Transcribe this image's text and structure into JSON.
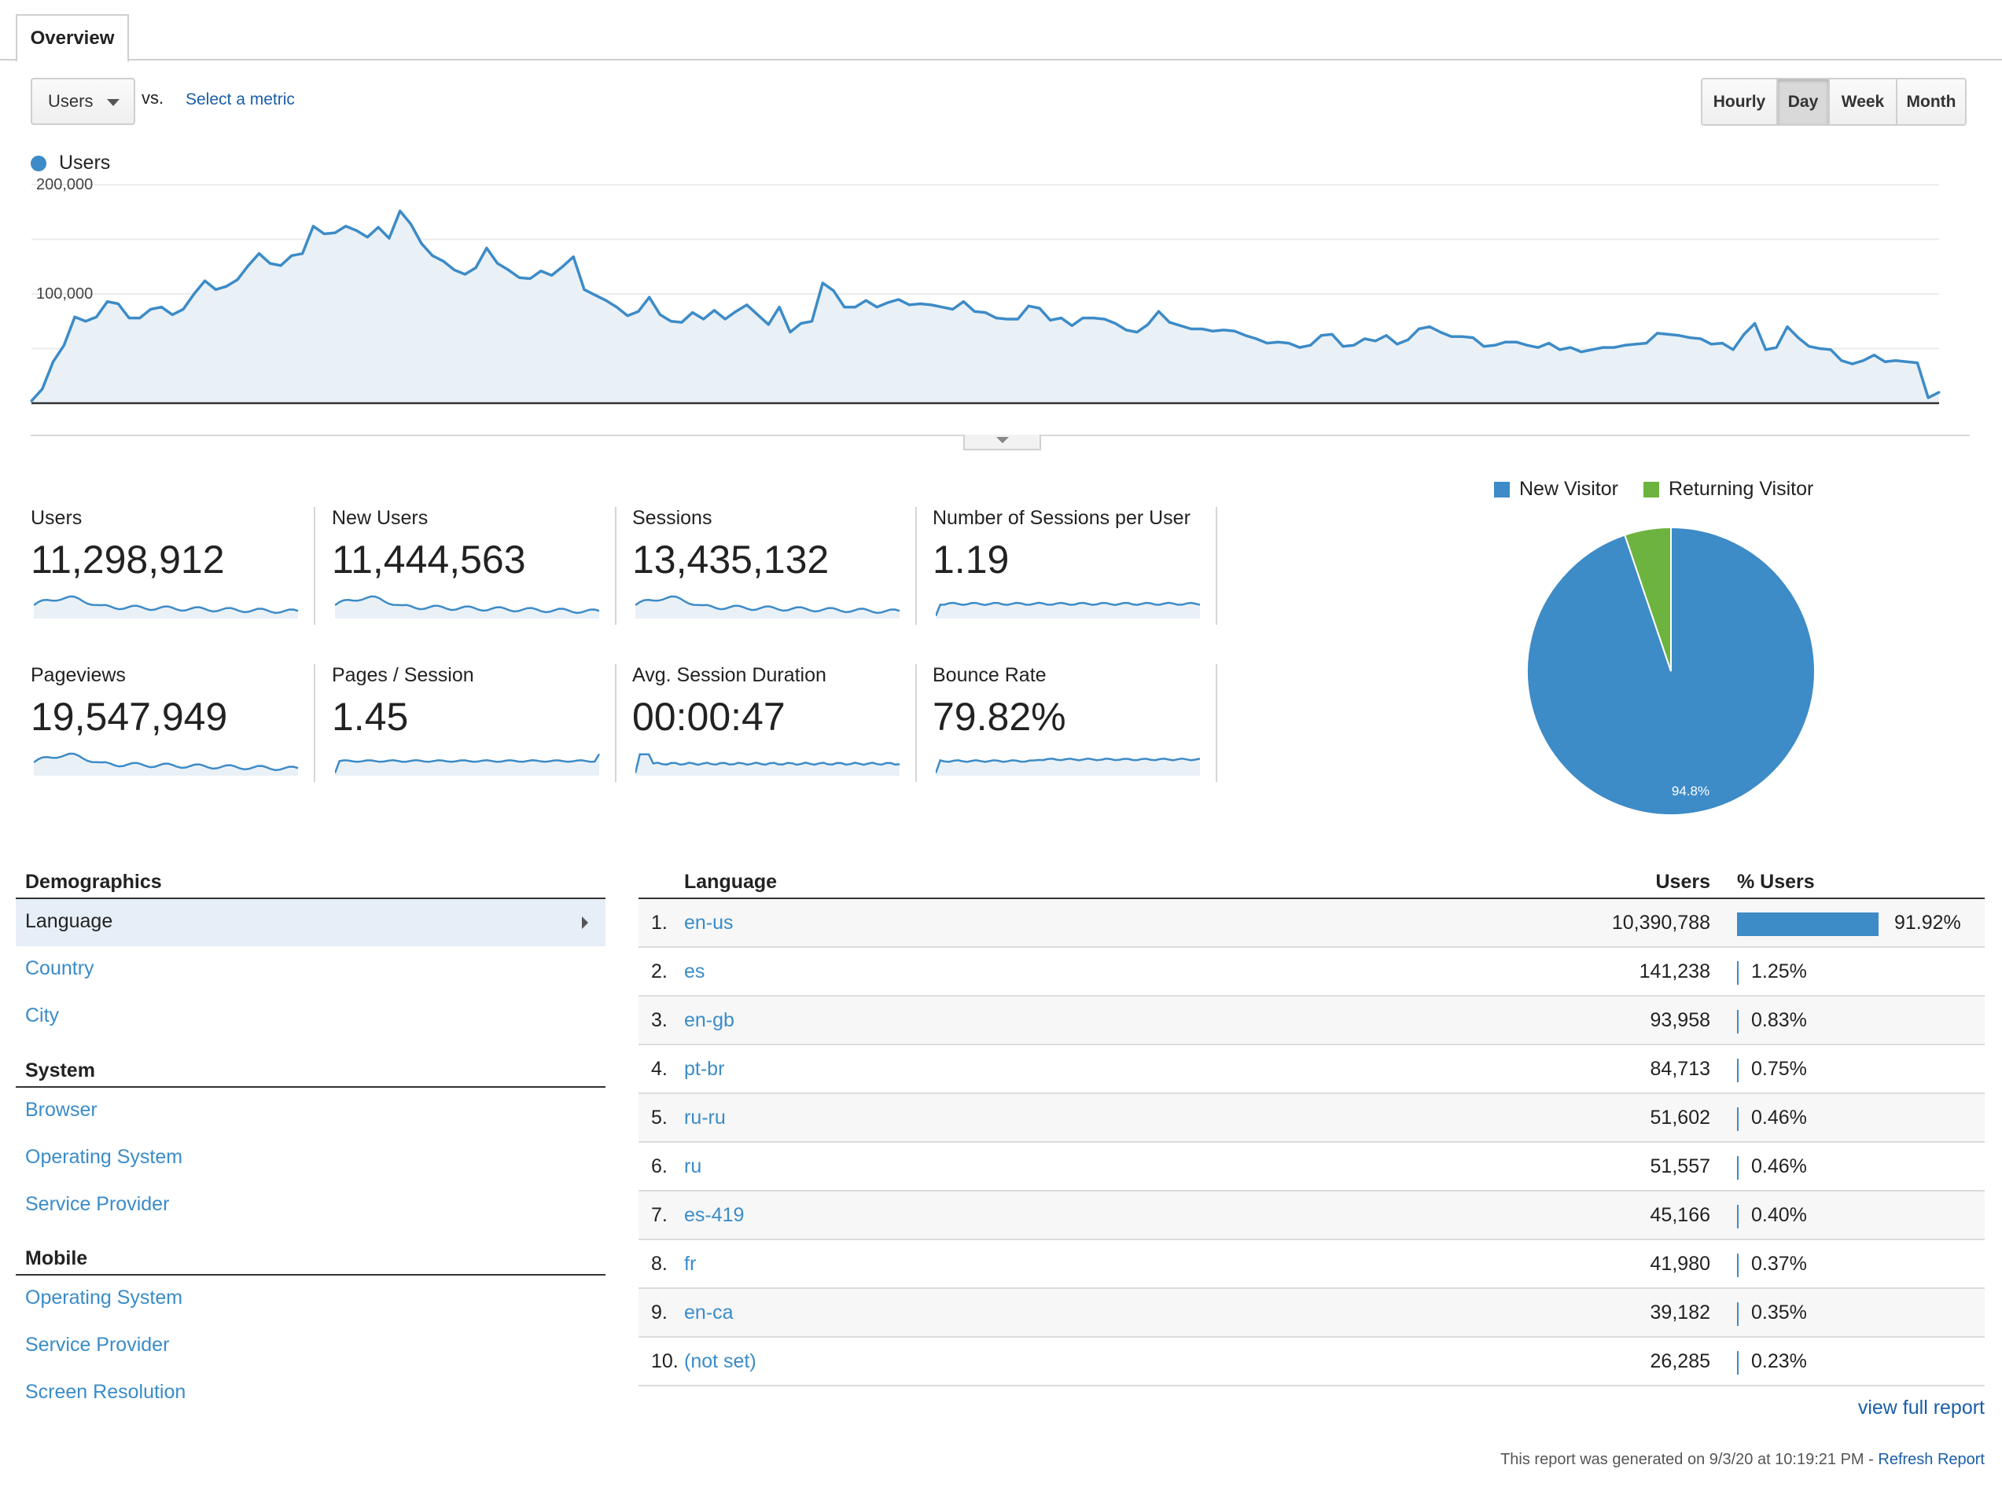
{
  "tab": {
    "label": "Overview"
  },
  "controls": {
    "metric_value": "Users",
    "vs_label": "vs.",
    "select_metric": "Select a metric",
    "granularity": [
      "Hourly",
      "Day",
      "Week",
      "Month"
    ],
    "active_granularity": "Day"
  },
  "chart_data": {
    "type": "area",
    "series": [
      {
        "name": "Users",
        "color": "#3d8bc7",
        "values": [
          2000,
          13000,
          38000,
          53000,
          79000,
          75000,
          79000,
          93000,
          91000,
          78000,
          78000,
          86000,
          88000,
          81000,
          86000,
          100000,
          112000,
          104000,
          107000,
          113000,
          126000,
          137000,
          128000,
          126000,
          135000,
          137000,
          162000,
          155000,
          156000,
          162000,
          158000,
          152000,
          161000,
          151000,
          176000,
          164000,
          146000,
          135000,
          130000,
          122000,
          118000,
          124000,
          142000,
          128000,
          122000,
          115000,
          114000,
          121000,
          117000,
          125000,
          134000,
          104000,
          99000,
          94000,
          88000,
          80000,
          84000,
          97000,
          81000,
          75000,
          74000,
          83000,
          77000,
          85000,
          77000,
          84000,
          90000,
          81000,
          72000,
          88000,
          65000,
          73000,
          75000,
          110000,
          103000,
          88000,
          88000,
          94000,
          88000,
          92000,
          95000,
          90000,
          91000,
          90000,
          88000,
          86000,
          93000,
          84000,
          83000,
          78000,
          77000,
          77000,
          89000,
          87000,
          76000,
          78000,
          71000,
          78000,
          78000,
          77000,
          73000,
          67000,
          65000,
          72000,
          84000,
          74000,
          71000,
          68000,
          68000,
          66000,
          67000,
          66000,
          62000,
          59000,
          55000,
          56000,
          55000,
          51000,
          53000,
          62000,
          63000,
          52000,
          53000,
          59000,
          57000,
          62000,
          54000,
          58000,
          68000,
          70000,
          65000,
          61000,
          61000,
          60000,
          52000,
          53000,
          56000,
          56000,
          53000,
          51000,
          55000,
          49000,
          51000,
          47000,
          49000,
          51000,
          51000,
          53000,
          54000,
          55000,
          64000,
          63000,
          62000,
          60000,
          59000,
          54000,
          55000,
          49000,
          63000,
          73000,
          49000,
          51000,
          70000,
          60000,
          52000,
          50000,
          49000,
          39000,
          36000,
          39000,
          44000,
          38000,
          39000,
          38000,
          37000,
          5000,
          10000
        ]
      }
    ],
    "y_tick_labels": [
      "200,000",
      "100,000"
    ],
    "ylim": [
      0,
      200000
    ],
    "grid": true
  },
  "metrics": [
    {
      "label": "Users",
      "value": "11,298,912"
    },
    {
      "label": "New Users",
      "value": "11,444,563"
    },
    {
      "label": "Sessions",
      "value": "13,435,132"
    },
    {
      "label": "Number of Sessions per User",
      "value": "1.19"
    },
    {
      "label": "Pageviews",
      "value": "19,547,949"
    },
    {
      "label": "Pages / Session",
      "value": "1.45"
    },
    {
      "label": "Avg. Session Duration",
      "value": "00:00:47"
    },
    {
      "label": "Bounce Rate",
      "value": "79.82%"
    }
  ],
  "pie": {
    "legend": [
      {
        "label": "New Visitor",
        "color": "#3d8bc7"
      },
      {
        "label": "Returning Visitor",
        "color": "#6db33f"
      }
    ],
    "values": [
      94.8,
      5.2
    ],
    "label_new": "94.8%"
  },
  "nav": {
    "sections": [
      {
        "title": "Demographics",
        "items": [
          "Language",
          "Country",
          "City"
        ]
      },
      {
        "title": "System",
        "items": [
          "Browser",
          "Operating System",
          "Service Provider"
        ]
      },
      {
        "title": "Mobile",
        "items": [
          "Operating System",
          "Service Provider",
          "Screen Resolution"
        ]
      }
    ],
    "active": "Language"
  },
  "table": {
    "headers": {
      "dimension": "Language",
      "users": "Users",
      "pct": "% Users"
    },
    "rows": [
      {
        "n": "1.",
        "lang": "en-us",
        "users": "10,390,788",
        "pct": "91.92%",
        "share": 91.92
      },
      {
        "n": "2.",
        "lang": "es",
        "users": "141,238",
        "pct": "1.25%",
        "share": 1.25
      },
      {
        "n": "3.",
        "lang": "en-gb",
        "users": "93,958",
        "pct": "0.83%",
        "share": 0.83
      },
      {
        "n": "4.",
        "lang": "pt-br",
        "users": "84,713",
        "pct": "0.75%",
        "share": 0.75
      },
      {
        "n": "5.",
        "lang": "ru-ru",
        "users": "51,602",
        "pct": "0.46%",
        "share": 0.46
      },
      {
        "n": "6.",
        "lang": "ru",
        "users": "51,557",
        "pct": "0.46%",
        "share": 0.46
      },
      {
        "n": "7.",
        "lang": "es-419",
        "users": "45,166",
        "pct": "0.40%",
        "share": 0.4
      },
      {
        "n": "8.",
        "lang": "fr",
        "users": "41,980",
        "pct": "0.37%",
        "share": 0.37
      },
      {
        "n": "9.",
        "lang": "en-ca",
        "users": "39,182",
        "pct": "0.35%",
        "share": 0.35
      },
      {
        "n": "10.",
        "lang": "(not set)",
        "users": "26,285",
        "pct": "0.23%",
        "share": 0.23
      }
    ]
  },
  "view_full_report": "view full report",
  "footer": {
    "text": "This report was generated on 9/3/20 at 10:19:21 PM - ",
    "link": "Refresh Report"
  }
}
